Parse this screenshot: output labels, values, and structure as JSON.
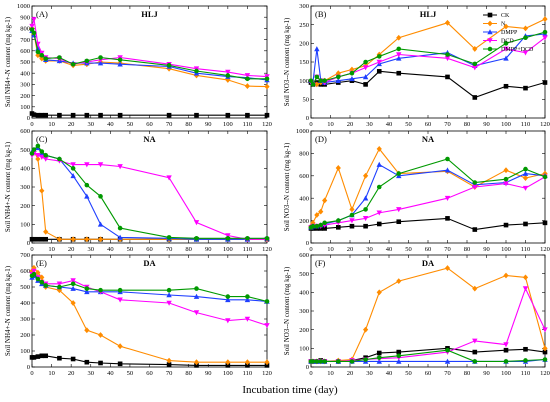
{
  "figure": {
    "x_title": "Incubation time (day)"
  },
  "legend": {
    "entries": [
      {
        "name": "CK",
        "color": "#000000",
        "marker": "square"
      },
      {
        "name": "N",
        "color": "#ff8c00",
        "marker": "diamond"
      },
      {
        "name": "DMPP",
        "color": "#1f3fff",
        "marker": "triangle"
      },
      {
        "name": "DCD",
        "color": "#ff00ff",
        "marker": "tridown"
      },
      {
        "name": "DMPP+DCD",
        "color": "#009900",
        "marker": "circle"
      }
    ]
  },
  "chart_data": [
    {
      "type": "line",
      "panel": "(A)",
      "title": "HLJ",
      "ylabel": "Soil NH4+-N content (mg kg-1)",
      "ylim": [
        0,
        1000
      ],
      "yticks": [
        0,
        100,
        200,
        300,
        400,
        500,
        600,
        700,
        800,
        900,
        1000
      ],
      "xlim": [
        0,
        120
      ],
      "xticks": [
        0,
        10,
        20,
        30,
        40,
        50,
        60,
        70,
        80,
        90,
        100,
        110,
        120
      ],
      "x": [
        0,
        1,
        3,
        5,
        7,
        14,
        21,
        28,
        35,
        45,
        70,
        84,
        100,
        110,
        120
      ],
      "series": [
        {
          "name": "CK",
          "values": [
            40,
            30,
            25,
            25,
            25,
            25,
            25,
            25,
            25,
            25,
            25,
            25,
            25,
            25,
            25
          ]
        },
        {
          "name": "N",
          "values": [
            800,
            750,
            560,
            530,
            510,
            510,
            470,
            480,
            500,
            490,
            440,
            380,
            340,
            285,
            280
          ]
        },
        {
          "name": "DMPP",
          "values": [
            780,
            740,
            620,
            570,
            520,
            510,
            490,
            490,
            490,
            480,
            460,
            400,
            370,
            360,
            340
          ]
        },
        {
          "name": "DCD",
          "values": [
            820,
            880,
            660,
            580,
            540,
            530,
            480,
            500,
            520,
            540,
            480,
            440,
            410,
            380,
            370
          ]
        },
        {
          "name": "DMPP+DCD",
          "values": [
            790,
            760,
            590,
            560,
            530,
            540,
            480,
            510,
            540,
            520,
            470,
            420,
            380,
            350,
            350
          ]
        }
      ]
    },
    {
      "type": "line",
      "panel": "(B)",
      "title": "HLJ",
      "ylabel": "Soil NO3--N content (mg kg-1)",
      "ylim": [
        0,
        300
      ],
      "yticks": [
        0,
        50,
        100,
        150,
        200,
        250,
        300
      ],
      "xlim": [
        0,
        120
      ],
      "xticks": [
        0,
        10,
        20,
        30,
        40,
        50,
        60,
        70,
        80,
        90,
        100,
        110,
        120
      ],
      "x": [
        0,
        1,
        3,
        5,
        7,
        14,
        21,
        28,
        35,
        45,
        70,
        84,
        100,
        110,
        120
      ],
      "series": [
        {
          "name": "CK",
          "values": [
            95,
            90,
            95,
            90,
            90,
            95,
            100,
            90,
            125,
            120,
            110,
            55,
            85,
            80,
            95
          ]
        },
        {
          "name": "N",
          "values": [
            100,
            95,
            90,
            95,
            100,
            120,
            130,
            140,
            170,
            215,
            255,
            185,
            245,
            240,
            265
          ]
        },
        {
          "name": "DMPP",
          "values": [
            100,
            95,
            185,
            100,
            95,
            100,
            105,
            110,
            145,
            160,
            175,
            140,
            160,
            220,
            225
          ]
        },
        {
          "name": "DCD",
          "values": [
            95,
            90,
            110,
            100,
            95,
            110,
            120,
            135,
            150,
            170,
            160,
            135,
            185,
            175,
            215
          ]
        },
        {
          "name": "DMPP+DCD",
          "values": [
            100,
            90,
            110,
            100,
            100,
            110,
            120,
            150,
            165,
            185,
            170,
            145,
            200,
            215,
            230
          ]
        }
      ]
    },
    {
      "type": "line",
      "panel": "(C)",
      "title": "NA",
      "ylabel": "Soil NH4+-N content (mg kg-1)",
      "ylim": [
        0,
        600
      ],
      "yticks": [
        0,
        100,
        200,
        300,
        400,
        500,
        600
      ],
      "xlim": [
        0,
        120
      ],
      "xticks": [
        0,
        10,
        20,
        30,
        40,
        50,
        60,
        70,
        80,
        90,
        100,
        110,
        120
      ],
      "x": [
        0,
        1,
        3,
        5,
        7,
        14,
        21,
        28,
        35,
        45,
        70,
        84,
        100,
        110,
        120
      ],
      "series": [
        {
          "name": "CK",
          "values": [
            20,
            20,
            20,
            20,
            20,
            20,
            20,
            20,
            20,
            20,
            20,
            20,
            20,
            20,
            20
          ]
        },
        {
          "name": "N",
          "values": [
            480,
            490,
            450,
            280,
            60,
            20,
            20,
            20,
            20,
            20,
            20,
            20,
            20,
            20,
            20
          ]
        },
        {
          "name": "DMPP",
          "values": [
            490,
            500,
            510,
            480,
            470,
            450,
            360,
            250,
            100,
            30,
            25,
            20,
            20,
            20,
            25
          ]
        },
        {
          "name": "DCD",
          "values": [
            470,
            480,
            470,
            460,
            450,
            440,
            420,
            420,
            420,
            410,
            350,
            110,
            40,
            20,
            20
          ]
        },
        {
          "name": "DMPP+DCD",
          "values": [
            480,
            500,
            520,
            490,
            470,
            450,
            400,
            310,
            250,
            80,
            30,
            25,
            25,
            25,
            25
          ]
        }
      ]
    },
    {
      "type": "line",
      "panel": "(D)",
      "title": "NA",
      "ylabel": "Soil NO3--N content (mg kg-1)",
      "ylim": [
        0,
        1000
      ],
      "yticks": [
        0,
        200,
        400,
        600,
        800,
        1000
      ],
      "xlim": [
        0,
        120
      ],
      "xticks": [
        0,
        10,
        20,
        30,
        40,
        50,
        60,
        70,
        80,
        90,
        100,
        110,
        120
      ],
      "x": [
        0,
        1,
        3,
        5,
        7,
        14,
        21,
        28,
        35,
        45,
        70,
        84,
        100,
        110,
        120
      ],
      "series": [
        {
          "name": "CK",
          "values": [
            130,
            130,
            130,
            130,
            130,
            140,
            150,
            150,
            170,
            190,
            220,
            120,
            160,
            170,
            180
          ]
        },
        {
          "name": "N",
          "values": [
            150,
            180,
            250,
            280,
            380,
            670,
            300,
            600,
            840,
            620,
            640,
            500,
            650,
            580,
            620
          ]
        },
        {
          "name": "DMPP",
          "values": [
            140,
            150,
            150,
            160,
            170,
            200,
            250,
            400,
            700,
            600,
            650,
            520,
            540,
            620,
            600
          ]
        },
        {
          "name": "DCD",
          "values": [
            140,
            150,
            150,
            150,
            160,
            180,
            200,
            220,
            270,
            300,
            400,
            500,
            530,
            490,
            590
          ]
        },
        {
          "name": "DMPP+DCD",
          "values": [
            140,
            150,
            150,
            160,
            180,
            200,
            250,
            300,
            500,
            620,
            750,
            540,
            570,
            660,
            590
          ]
        }
      ]
    },
    {
      "type": "line",
      "panel": "(E)",
      "title": "DA",
      "ylabel": "Soil NH4+-N content (mg kg-1)",
      "ylim": [
        0,
        700
      ],
      "yticks": [
        0,
        100,
        200,
        300,
        400,
        500,
        600,
        700
      ],
      "xlim": [
        0,
        120
      ],
      "xticks": [
        0,
        10,
        20,
        30,
        40,
        50,
        60,
        70,
        80,
        90,
        100,
        110,
        120
      ],
      "x": [
        0,
        1,
        3,
        5,
        7,
        14,
        21,
        28,
        35,
        45,
        70,
        84,
        100,
        110,
        120
      ],
      "series": [
        {
          "name": "CK",
          "values": [
            60,
            60,
            65,
            70,
            70,
            55,
            50,
            30,
            25,
            20,
            15,
            10,
            10,
            10,
            10
          ]
        },
        {
          "name": "N",
          "values": [
            600,
            620,
            590,
            560,
            500,
            480,
            400,
            230,
            200,
            130,
            40,
            30,
            30,
            30,
            30
          ]
        },
        {
          "name": "DMPP",
          "values": [
            560,
            570,
            540,
            520,
            510,
            500,
            490,
            470,
            470,
            470,
            450,
            440,
            420,
            420,
            410
          ]
        },
        {
          "name": "DCD",
          "values": [
            580,
            600,
            560,
            530,
            520,
            520,
            540,
            500,
            470,
            420,
            400,
            340,
            290,
            300,
            260
          ]
        },
        {
          "name": "DMPP+DCD",
          "values": [
            570,
            580,
            550,
            530,
            510,
            500,
            520,
            490,
            480,
            480,
            480,
            490,
            440,
            440,
            410
          ]
        }
      ]
    },
    {
      "type": "line",
      "panel": "(F)",
      "title": "DA",
      "ylabel": "Soil NO3--N content (mg kg-1)",
      "ylim": [
        0,
        600
      ],
      "yticks": [
        0,
        100,
        200,
        300,
        400,
        500,
        600
      ],
      "xlim": [
        0,
        120
      ],
      "xticks": [
        0,
        10,
        20,
        30,
        40,
        50,
        60,
        70,
        80,
        90,
        100,
        110,
        120
      ],
      "x": [
        0,
        1,
        3,
        5,
        7,
        14,
        21,
        28,
        35,
        45,
        70,
        84,
        100,
        110,
        120
      ],
      "series": [
        {
          "name": "CK",
          "values": [
            30,
            30,
            30,
            35,
            30,
            30,
            35,
            50,
            75,
            80,
            100,
            80,
            90,
            95,
            80
          ]
        },
        {
          "name": "N",
          "values": [
            30,
            30,
            30,
            30,
            30,
            35,
            40,
            200,
            400,
            460,
            530,
            420,
            490,
            480,
            100
          ]
        },
        {
          "name": "DMPP",
          "values": [
            30,
            30,
            30,
            30,
            30,
            30,
            30,
            30,
            30,
            30,
            30,
            30,
            30,
            30,
            40
          ]
        },
        {
          "name": "DCD",
          "values": [
            30,
            30,
            30,
            30,
            30,
            30,
            35,
            40,
            45,
            50,
            80,
            140,
            120,
            420,
            200
          ]
        },
        {
          "name": "DMPP+DCD",
          "values": [
            30,
            30,
            30,
            30,
            30,
            30,
            30,
            40,
            50,
            60,
            90,
            30,
            30,
            35,
            40
          ]
        }
      ]
    }
  ]
}
